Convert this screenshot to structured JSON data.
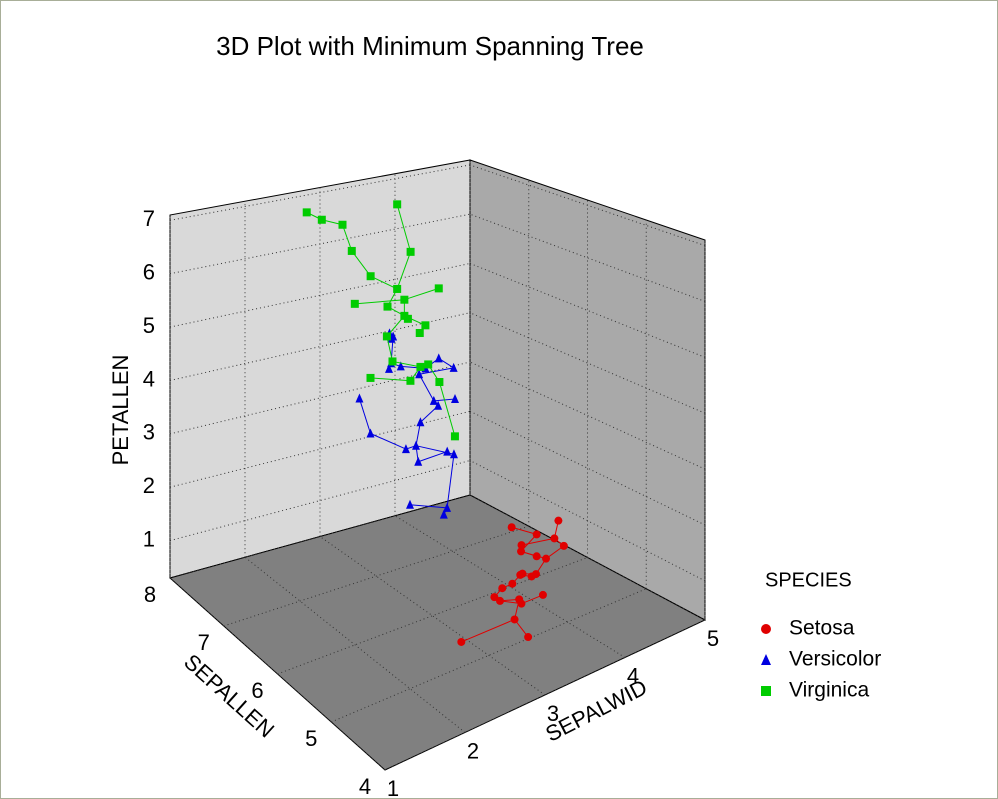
{
  "chart_data": {
    "type": "scatter3d",
    "title": "3D Plot with Minimum Spanning Tree",
    "x_label": "SEPALWID",
    "y_label": "SEPALLEN",
    "z_label": "PETALLEN",
    "xlim": [
      1,
      5
    ],
    "xticks": [
      1,
      2,
      3,
      4,
      5
    ],
    "ylim": [
      4,
      8
    ],
    "yticks": [
      4,
      5,
      6,
      7,
      8
    ],
    "zlim": [
      0.3,
      7.1
    ],
    "zticks": [
      1,
      2,
      3,
      4,
      5,
      6,
      7
    ],
    "grid": true,
    "legend_title": "SPECIES",
    "series": [
      {
        "name": "Setosa",
        "color": "#e00000",
        "marker": "circle",
        "x": [
          3.5,
          3.0,
          3.2,
          3.1,
          3.6,
          3.9,
          3.4,
          3.4,
          2.9,
          3.1,
          3.7,
          3.4,
          3.0,
          3.0,
          4.0,
          4.4,
          3.9,
          3.5,
          3.8,
          3.8,
          2.3,
          4.2,
          4.1,
          3.3
        ],
        "y": [
          5.1,
          4.9,
          4.7,
          4.6,
          5.0,
          5.4,
          4.6,
          5.0,
          4.4,
          4.9,
          5.4,
          4.8,
          4.8,
          4.3,
          5.8,
          5.7,
          5.4,
          5.1,
          5.7,
          5.1,
          4.5,
          5.5,
          5.2,
          5.0
        ],
        "z": [
          1.4,
          1.4,
          1.3,
          1.5,
          1.4,
          1.7,
          1.4,
          1.5,
          1.4,
          1.5,
          1.5,
          1.6,
          1.4,
          1.1,
          1.2,
          1.5,
          1.3,
          1.4,
          1.7,
          1.5,
          1.3,
          1.4,
          1.5,
          1.4
        ]
      },
      {
        "name": "Versicolor",
        "color": "#0000e0",
        "marker": "triangle",
        "x": [
          3.2,
          3.2,
          3.1,
          2.3,
          2.8,
          2.8,
          3.3,
          2.4,
          2.9,
          2.7,
          2.0,
          3.0,
          2.2,
          2.9,
          2.9,
          3.1,
          3.0,
          2.7,
          2.2,
          2.5,
          3.2,
          2.5,
          3.0,
          2.6
        ],
        "y": [
          7.0,
          6.4,
          6.9,
          5.5,
          6.5,
          5.7,
          6.3,
          4.9,
          6.6,
          5.2,
          5.0,
          5.9,
          6.0,
          6.1,
          5.6,
          6.7,
          5.6,
          5.8,
          6.2,
          5.6,
          5.9,
          5.1,
          6.7,
          5.7
        ],
        "z": [
          4.7,
          4.5,
          4.9,
          4.0,
          4.6,
          4.5,
          4.7,
          3.3,
          4.6,
          3.9,
          3.5,
          4.2,
          4.0,
          4.7,
          3.6,
          4.4,
          4.5,
          4.1,
          4.5,
          3.9,
          4.8,
          3.0,
          5.0,
          3.5
        ]
      },
      {
        "name": "Virginica",
        "color": "#00cc00",
        "marker": "square",
        "x": [
          3.3,
          2.7,
          3.0,
          2.9,
          3.0,
          3.0,
          2.5,
          2.9,
          2.5,
          3.6,
          3.2,
          2.7,
          3.0,
          2.5,
          2.8,
          3.2,
          3.0,
          3.8,
          2.6,
          2.2,
          3.2,
          2.8,
          2.8,
          2.7
        ],
        "y": [
          6.3,
          5.8,
          7.1,
          6.3,
          6.5,
          7.6,
          4.9,
          7.3,
          6.7,
          7.2,
          6.5,
          6.4,
          6.8,
          5.7,
          5.8,
          6.4,
          6.5,
          7.7,
          7.7,
          6.0,
          6.9,
          5.6,
          7.7,
          6.3
        ],
        "z": [
          6.0,
          5.1,
          5.9,
          5.6,
          5.8,
          6.6,
          4.5,
          6.3,
          5.8,
          6.1,
          5.1,
          5.3,
          5.5,
          5.0,
          5.1,
          5.3,
          5.5,
          6.7,
          6.9,
          5.0,
          5.7,
          4.9,
          6.7,
          4.9
        ]
      }
    ]
  }
}
